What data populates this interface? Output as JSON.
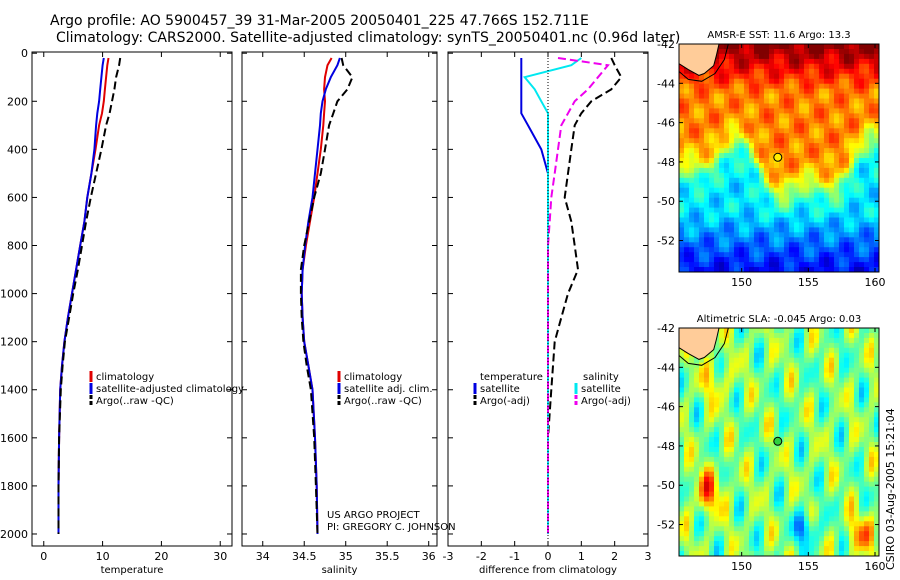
{
  "title": {
    "line1": "Argo profile: AO 5900457_39 31-Mar-2005 20050401_225 47.766S 152.711E",
    "line2": "Climatology: CARS2000. Satellite-adjusted climatology: synTS_20050401.nc (0.96d later)"
  },
  "credit": "CSIRO 03-Aug-2005 15:21:04",
  "project_note": [
    "US ARGO PROJECT",
    "PI: GREGORY C. JOHNSON"
  ],
  "colors": {
    "climatology": "#e00000",
    "satellite": "#0000e0",
    "argo": "#000000",
    "sal_satellite": "#00e8f0",
    "sal_argo": "#ee00ee"
  },
  "chart_data": [
    {
      "id": "temperature",
      "type": "line",
      "xlabel": "temperature",
      "xlim": [
        -2,
        32
      ],
      "xticks": [
        0,
        10,
        20,
        30
      ],
      "ylim": [
        2050,
        -5
      ],
      "yticks": [
        0,
        200,
        400,
        600,
        800,
        1000,
        1200,
        1400,
        1600,
        1800,
        2000
      ],
      "legend": [
        "climatology",
        "satellite-adjusted climatology",
        "Argo(..raw -QC)"
      ],
      "legend_position": "lower-right",
      "series": [
        {
          "name": "climatology",
          "color": "#e00000",
          "style": "solid",
          "x": [
            11.0,
            10.8,
            10.6,
            10.4,
            10.2,
            9.9,
            9.4,
            8.8,
            8.1,
            7.4,
            6.9,
            6.2,
            5.5,
            4.8,
            4.1,
            3.5,
            3.1,
            2.8,
            2.6,
            2.5,
            2.5
          ],
          "y": [
            20,
            50,
            100,
            150,
            200,
            250,
            300,
            400,
            500,
            600,
            700,
            800,
            900,
            1000,
            1100,
            1200,
            1300,
            1400,
            1600,
            1800,
            2000
          ]
        },
        {
          "name": "satellite-adjusted climatology",
          "color": "#0000e0",
          "style": "solid",
          "x": [
            10.2,
            10.0,
            9.8,
            9.6,
            9.4,
            9.1,
            8.9,
            8.6,
            8.1,
            7.4,
            6.9,
            6.2,
            5.5,
            4.8,
            4.1,
            3.5,
            3.1,
            2.8,
            2.6,
            2.5,
            2.5
          ],
          "y": [
            20,
            50,
            100,
            150,
            200,
            250,
            300,
            400,
            500,
            600,
            700,
            800,
            900,
            1000,
            1100,
            1200,
            1300,
            1400,
            1600,
            1800,
            2000
          ]
        },
        {
          "name": "Argo(..raw -QC)",
          "color": "#000000",
          "style": "dashed",
          "x": [
            13.0,
            12.8,
            12.3,
            12.0,
            11.6,
            11.2,
            10.6,
            9.8,
            8.9,
            8.0,
            7.2,
            6.5,
            5.8,
            5.0,
            4.3,
            3.6,
            3.2,
            2.9,
            2.6,
            2.5,
            2.5
          ],
          "y": [
            20,
            50,
            100,
            150,
            200,
            250,
            300,
            400,
            500,
            600,
            700,
            800,
            900,
            1000,
            1100,
            1200,
            1300,
            1400,
            1600,
            1800,
            2000
          ]
        }
      ]
    },
    {
      "id": "salinity",
      "type": "line",
      "xlabel": "salinity",
      "xlim": [
        33.75,
        36.1
      ],
      "xticks": [
        34,
        34.5,
        35,
        35.5,
        36
      ],
      "xticklabels": [
        "34",
        "34.5",
        "35",
        "35.5",
        "36"
      ],
      "ylim": [
        2050,
        -5
      ],
      "yticks": [
        0,
        200,
        400,
        600,
        800,
        1000,
        1200,
        1400,
        1600,
        1800,
        2000
      ],
      "legend": [
        "climatology",
        "satellite adj. clim.",
        "Argo(..raw -QC)"
      ],
      "legend_position": "lower-right",
      "series": [
        {
          "name": "climatology",
          "color": "#e00000",
          "style": "solid",
          "x": [
            34.83,
            34.78,
            34.75,
            34.74,
            34.75,
            34.74,
            34.73,
            34.7,
            34.66,
            34.62,
            34.57,
            34.52,
            34.48,
            34.47,
            34.48,
            34.5,
            34.55,
            34.6,
            34.63,
            34.65,
            34.66
          ],
          "y": [
            20,
            50,
            100,
            150,
            200,
            250,
            300,
            400,
            500,
            600,
            700,
            800,
            900,
            1000,
            1100,
            1200,
            1300,
            1400,
            1600,
            1800,
            2000
          ]
        },
        {
          "name": "satellite adj. clim.",
          "color": "#0000e0",
          "style": "solid",
          "x": [
            34.93,
            34.9,
            34.82,
            34.76,
            34.72,
            34.7,
            34.69,
            34.66,
            34.63,
            34.6,
            34.55,
            34.51,
            34.48,
            34.47,
            34.48,
            34.5,
            34.55,
            34.6,
            34.63,
            34.65,
            34.66
          ],
          "y": [
            20,
            50,
            100,
            150,
            200,
            250,
            300,
            400,
            500,
            600,
            700,
            800,
            900,
            1000,
            1100,
            1200,
            1300,
            1400,
            1600,
            1800,
            2000
          ]
        },
        {
          "name": "Argo(..raw -QC)",
          "color": "#000000",
          "style": "dashed",
          "x": [
            34.95,
            34.97,
            35.08,
            35.02,
            34.9,
            34.85,
            34.8,
            34.75,
            34.7,
            34.62,
            34.56,
            34.5,
            34.46,
            34.46,
            34.47,
            34.49,
            34.53,
            34.58,
            34.62,
            34.64,
            34.66
          ],
          "y": [
            20,
            50,
            100,
            150,
            200,
            250,
            300,
            400,
            500,
            600,
            700,
            800,
            900,
            1000,
            1100,
            1200,
            1300,
            1400,
            1600,
            1800,
            2000
          ]
        }
      ]
    },
    {
      "id": "difference",
      "type": "line",
      "xlabel": "difference from climatology",
      "xlim": [
        -3,
        3
      ],
      "xticks": [
        -3,
        -2,
        -1,
        0,
        1,
        2,
        3
      ],
      "ylim": [
        2050,
        -5
      ],
      "yticks": [
        0,
        200,
        400,
        600,
        800,
        1000,
        1200,
        1400,
        1600,
        1800,
        2000
      ],
      "zero_line": true,
      "legend_left_title": "temperature",
      "legend_left": [
        "satellite",
        "Argo(-adj)"
      ],
      "legend_right_title": "salinity",
      "legend_right": [
        "satellite",
        "Argo(-adj)"
      ],
      "series": [
        {
          "name": "temperature satellite",
          "color": "#0000e0",
          "style": "solid",
          "x": [
            -0.8,
            -0.8,
            -0.8,
            -0.8,
            -0.8,
            -0.8,
            -0.6,
            -0.2,
            0,
            0,
            0,
            0,
            0,
            0,
            0,
            0,
            0,
            0,
            0,
            0
          ],
          "y": [
            20,
            50,
            100,
            150,
            200,
            250,
            300,
            400,
            500,
            600,
            700,
            800,
            900,
            1000,
            1100,
            1200,
            1400,
            1600,
            1800,
            2000
          ]
        },
        {
          "name": "temperature Argo(-adj)",
          "color": "#000000",
          "style": "dashed",
          "x": [
            1.9,
            2.0,
            2.2,
            1.9,
            1.3,
            1.0,
            0.8,
            0.7,
            0.6,
            0.5,
            0.7,
            0.8,
            0.9,
            0.6,
            0.4,
            0.2,
            0.1,
            0,
            0,
            0
          ],
          "y": [
            20,
            50,
            100,
            150,
            200,
            250,
            300,
            400,
            500,
            600,
            700,
            800,
            900,
            1000,
            1100,
            1200,
            1400,
            1600,
            1800,
            2000
          ]
        },
        {
          "name": "salinity satellite",
          "color": "#00e8f0",
          "style": "solid",
          "x": [
            1.0,
            0.7,
            -0.7,
            -0.4,
            -0.2,
            0,
            0,
            0,
            0,
            0,
            0,
            0,
            0,
            0,
            0,
            0,
            0,
            0,
            0,
            0
          ],
          "y": [
            20,
            50,
            100,
            150,
            200,
            250,
            300,
            400,
            500,
            600,
            700,
            800,
            900,
            1000,
            1100,
            1200,
            1400,
            1600,
            1800,
            2000
          ]
        },
        {
          "name": "salinity Argo(-adj)",
          "color": "#ee00ee",
          "style": "dashed",
          "x": [
            0.3,
            1.8,
            1.5,
            1.2,
            0.8,
            0.6,
            0.4,
            0.3,
            0.2,
            0.1,
            0.05,
            0,
            0,
            0,
            0,
            0,
            0,
            0,
            0,
            0
          ],
          "y": [
            20,
            50,
            100,
            150,
            200,
            250,
            300,
            400,
            500,
            600,
            700,
            800,
            900,
            1000,
            1100,
            1200,
            1400,
            1600,
            1800,
            2000
          ]
        }
      ]
    },
    {
      "id": "sst-map",
      "type": "heatmap",
      "title": "AMSR-E SST: 11.6 Argo: 13.3",
      "xlim": [
        145.3,
        160.3
      ],
      "ylim": [
        -53.6,
        -42.0
      ],
      "xticks": [
        150,
        155,
        160
      ],
      "yticks": [
        -42,
        -44,
        -46,
        -48,
        -50,
        -52
      ],
      "marker": {
        "lon": 152.711,
        "lat": -47.766,
        "color": "#ffee00"
      }
    },
    {
      "id": "sla-map",
      "type": "heatmap",
      "title": "Altimetric SLA: -0.045 Argo: 0.03",
      "xlim": [
        145.3,
        160.3
      ],
      "ylim": [
        -53.6,
        -42.0
      ],
      "xticks": [
        150,
        155,
        160
      ],
      "yticks": [
        -42,
        -44,
        -46,
        -48,
        -50,
        -52
      ],
      "marker": {
        "lon": 152.711,
        "lat": -47.766,
        "color": "#30d040"
      }
    }
  ]
}
